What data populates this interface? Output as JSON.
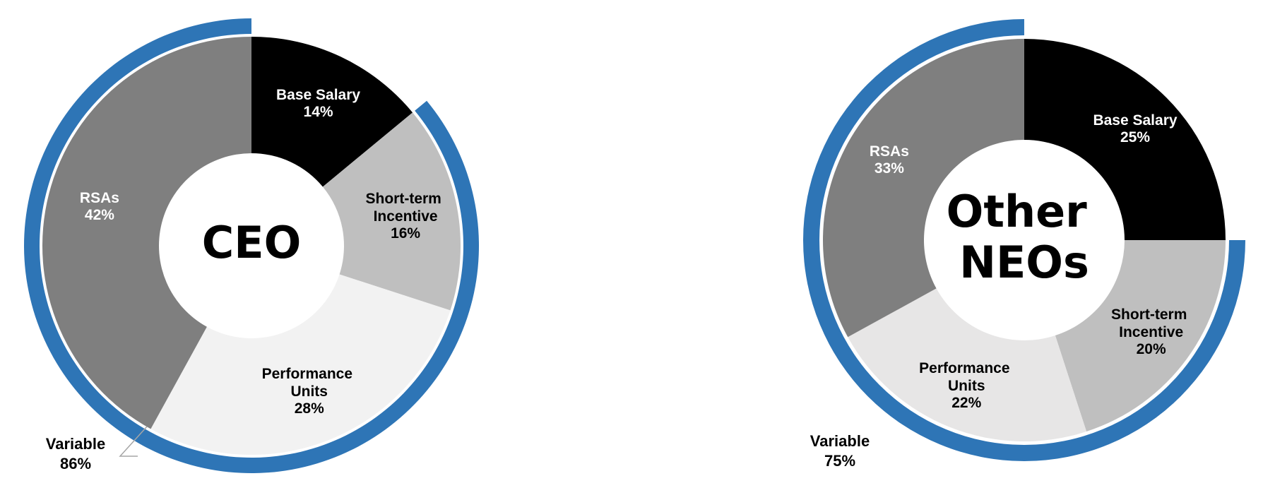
{
  "chart_data": [
    {
      "type": "pie",
      "title": "CEO",
      "categories": [
        "Base Salary",
        "Short-term Incentive",
        "Performance Units",
        "RSAs"
      ],
      "values": [
        14,
        16,
        28,
        42
      ],
      "value_labels": [
        "14%",
        "16%",
        "28%",
        "42%"
      ],
      "colors": [
        "#000000",
        "#bfbfbf",
        "#f2f2f2",
        "#7f7f7f"
      ],
      "ring": {
        "name": "Variable",
        "value": 86,
        "value_label": "86%",
        "color": "#2e75b6"
      }
    },
    {
      "type": "pie",
      "title": "Other NEOs",
      "categories": [
        "Base Salary",
        "Short-term Incentive",
        "Performance Units",
        "RSAs"
      ],
      "values": [
        25,
        20,
        22,
        33
      ],
      "value_labels": [
        "25%",
        "20%",
        "22%",
        "33%"
      ],
      "colors": [
        "#000000",
        "#bfbfbf",
        "#e7e6e6",
        "#7f7f7f"
      ],
      "ring": {
        "name": "Variable",
        "value": 75,
        "value_label": "75%",
        "color": "#2e75b6"
      }
    }
  ]
}
